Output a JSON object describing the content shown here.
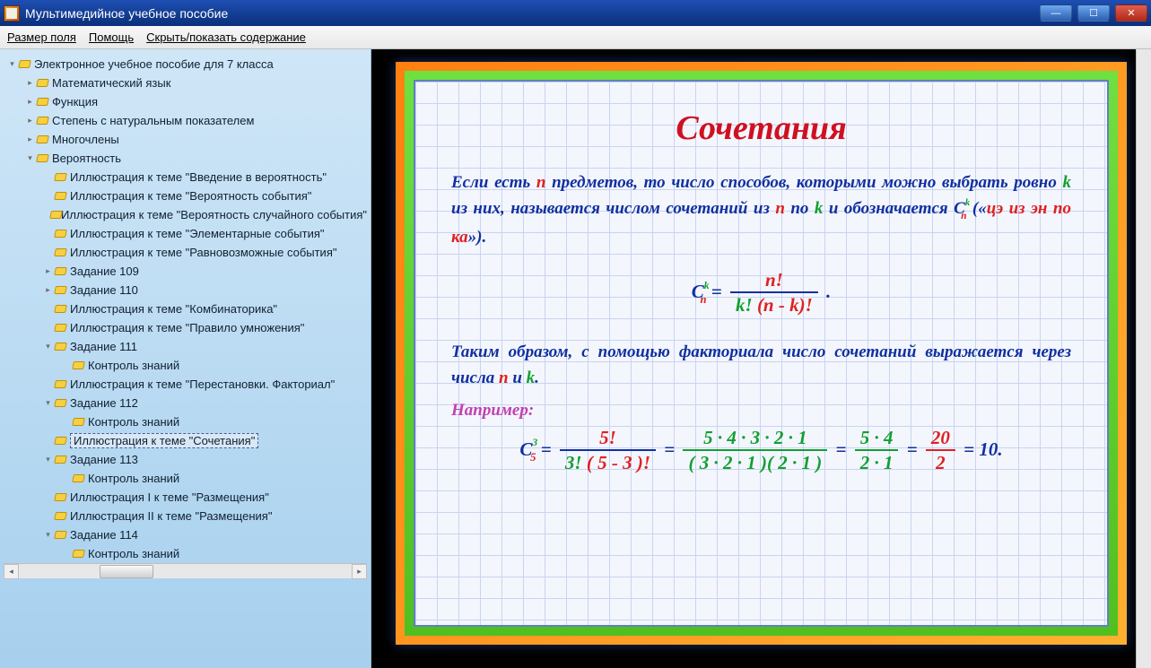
{
  "window": {
    "title": "Мультимедийное учебное пособие",
    "buttons": {
      "min": "—",
      "max": "☐",
      "close": "✕"
    }
  },
  "menu": {
    "field_size": "Размер поля",
    "help": "Помощь",
    "toggle_toc": "Скрыть/показать содержание"
  },
  "tree": {
    "items": [
      {
        "depth": 0,
        "toggle": "▾",
        "label": "Электронное учебное пособие для 7 класса"
      },
      {
        "depth": 1,
        "toggle": "▸",
        "label": "Математический язык"
      },
      {
        "depth": 1,
        "toggle": "▸",
        "label": "Функция"
      },
      {
        "depth": 1,
        "toggle": "▸",
        "label": "Степень с натуральным показателем"
      },
      {
        "depth": 1,
        "toggle": "▸",
        "label": "Многочлены"
      },
      {
        "depth": 1,
        "toggle": "▾",
        "label": "Вероятность"
      },
      {
        "depth": 2,
        "toggle": "",
        "label": "Иллюстрация к теме \"Введение в вероятность\""
      },
      {
        "depth": 2,
        "toggle": "",
        "label": "Иллюстрация к теме \"Вероятность события\""
      },
      {
        "depth": 2,
        "toggle": "",
        "label": "Иллюстрация к теме \"Вероятность случайного события\""
      },
      {
        "depth": 2,
        "toggle": "",
        "label": "Иллюстрация к теме \"Элементарные события\""
      },
      {
        "depth": 2,
        "toggle": "",
        "label": "Иллюстрация к теме \"Равновозможные события\""
      },
      {
        "depth": 2,
        "toggle": "▸",
        "label": "Задание 109"
      },
      {
        "depth": 2,
        "toggle": "▸",
        "label": "Задание 110"
      },
      {
        "depth": 2,
        "toggle": "",
        "label": "Иллюстрация к теме \"Комбинаторика\""
      },
      {
        "depth": 2,
        "toggle": "",
        "label": "Иллюстрация к теме \"Правило умножения\""
      },
      {
        "depth": 2,
        "toggle": "▾",
        "label": "Задание 111"
      },
      {
        "depth": 3,
        "toggle": "",
        "label": "Контроль знаний"
      },
      {
        "depth": 2,
        "toggle": "",
        "label": "Иллюстрация к теме \"Перестановки. Факториал\""
      },
      {
        "depth": 2,
        "toggle": "▾",
        "label": "Задание 112"
      },
      {
        "depth": 3,
        "toggle": "",
        "label": "Контроль знаний"
      },
      {
        "depth": 2,
        "toggle": "",
        "label": "Иллюстрация к теме \"Сочетания\"",
        "selected": true
      },
      {
        "depth": 2,
        "toggle": "▾",
        "label": "Задание 113"
      },
      {
        "depth": 3,
        "toggle": "",
        "label": "Контроль знаний"
      },
      {
        "depth": 2,
        "toggle": "",
        "label": "Иллюстрация I к теме \"Размещения\""
      },
      {
        "depth": 2,
        "toggle": "",
        "label": "Иллюстрация II к теме \"Размещения\""
      },
      {
        "depth": 2,
        "toggle": "▾",
        "label": "Задание 114"
      },
      {
        "depth": 3,
        "toggle": "",
        "label": "Контроль знаний"
      }
    ]
  },
  "slide": {
    "title": "Сочетания",
    "para1_parts": {
      "t1": "Если есть ",
      "n": "n",
      "t2": " предметов, то число способов, кото­рыми можно выбрать ровно ",
      "k": "k",
      "t3": " из них, называется числом сочетаний из ",
      "n2": "n",
      "t4": " по ",
      "k2": "k",
      "t5": " и обозначается ",
      "C": "С",
      "sup_k": "k",
      "sub_n": "n",
      "t6": " («",
      "ital": "цэ из эн по ка",
      "t7": "»)."
    },
    "formula": {
      "C": "С",
      "sup": "k",
      "sub": "n",
      "eq": " = ",
      "num": "n!",
      "den1": "k! (n - k)!",
      "dot": " ."
    },
    "para2_parts": {
      "t1": "Таким образом, с помощью факториала число со­четаний выражается через числа ",
      "n": "n",
      "t2": " и ",
      "k": "k",
      "t3": "."
    },
    "example_label": "Например:",
    "example": {
      "C": "С",
      "sup": "3",
      "sub": "5",
      "eq": " = ",
      "f1_num": "5!",
      "f1_den": "3! ( 5 - 3 )!",
      "f2_num": "5 · 4 · 3 · 2 · 1",
      "f2_den": "( 3 · 2 · 1 )( 2 · 1 )",
      "f3_num": "5 · 4",
      "f3_den": "2 · 1",
      "f4_num": "20",
      "f4_den": "2",
      "result": "10",
      "dot": "."
    },
    "colors": {
      "title": "#d01020",
      "body": "#1030a0",
      "n": "#e02020",
      "k": "#10a030",
      "example_label": "#c040b0",
      "frame_outer": "#ff9020",
      "frame_inner": "#50c020",
      "grid_bg": "#f4f6fd",
      "grid_line": "#c8d4f0"
    },
    "typography": {
      "title_fontsize": 38,
      "body_fontsize": 19,
      "formula_fontsize": 21,
      "font_family": "Times New Roman",
      "weight": "bold",
      "style": "italic"
    }
  }
}
